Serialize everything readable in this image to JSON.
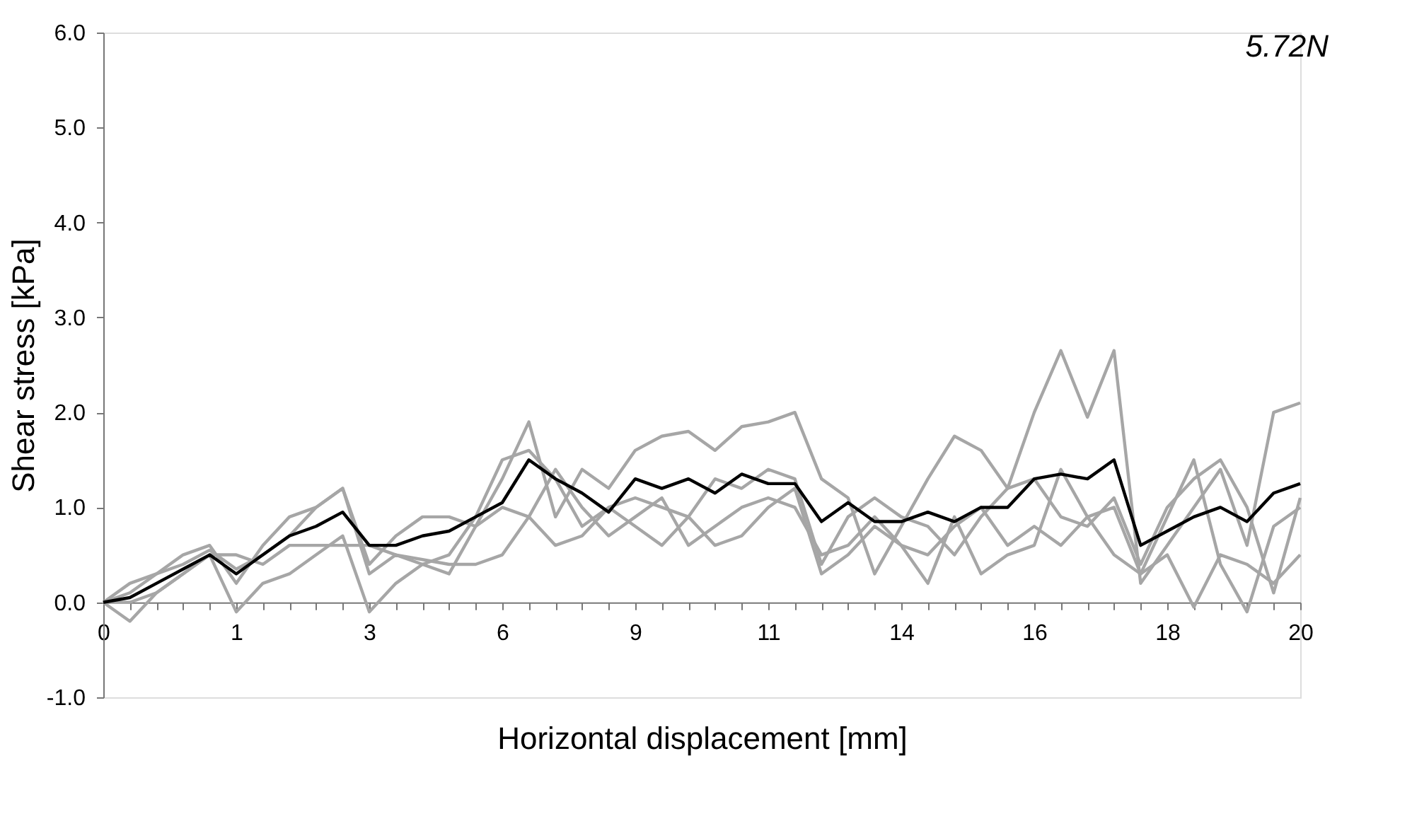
{
  "chart_data": {
    "type": "line",
    "xlabel": "Horizontal displacement [mm]",
    "ylabel": "Shear stress [kPa]",
    "annotations": [
      "5.72N"
    ],
    "categories": [
      "0",
      null,
      null,
      null,
      null,
      "1",
      null,
      null,
      null,
      null,
      "3",
      null,
      null,
      null,
      null,
      "6",
      null,
      null,
      null,
      null,
      "9",
      null,
      null,
      null,
      null,
      "11",
      null,
      null,
      null,
      null,
      "14",
      null,
      null,
      null,
      null,
      "16",
      null,
      null,
      null,
      null,
      "18",
      null,
      null,
      null,
      null,
      "20"
    ],
    "series": [
      {
        "color": "#a6a6a6",
        "values": [
          0,
          0.2,
          0.3,
          0.5,
          0.6,
          0.2,
          0.6,
          0.9,
          1.0,
          1.2,
          0.4,
          0.7,
          0.9,
          0.9,
          0.8,
          1.3,
          1.9,
          0.9,
          1.4,
          1.2,
          1.6,
          1.75,
          1.8,
          1.6,
          1.85,
          1.9,
          2.0,
          1.3,
          1.1,
          0.3,
          0.8,
          1.3,
          1.75,
          1.6,
          1.2,
          2.0,
          2.65,
          1.95,
          2.65,
          0.2,
          0.6,
          1.0,
          1.4,
          0.6,
          2.0,
          2.1
        ]
      },
      {
        "color": "#a6a6a6",
        "values": [
          0,
          0.1,
          0.3,
          0.4,
          0.55,
          0.35,
          0.5,
          0.7,
          1.0,
          1.2,
          0.3,
          0.5,
          0.4,
          0.5,
          0.9,
          1.5,
          1.6,
          1.3,
          0.8,
          1.0,
          1.1,
          1.0,
          0.9,
          1.3,
          1.2,
          1.4,
          1.3,
          0.4,
          0.9,
          1.1,
          0.9,
          0.8,
          0.5,
          0.9,
          1.2,
          1.3,
          0.9,
          0.8,
          1.1,
          0.4,
          1.0,
          1.3,
          1.5,
          1.0,
          0.1,
          1.1
        ]
      },
      {
        "color": "#a6a6a6",
        "values": [
          0,
          0.0,
          0.1,
          0.3,
          0.5,
          0.5,
          0.4,
          0.6,
          0.6,
          0.6,
          0.6,
          0.5,
          0.45,
          0.4,
          0.4,
          0.5,
          0.9,
          1.4,
          1.0,
          0.7,
          0.9,
          1.1,
          0.6,
          0.8,
          1.0,
          1.1,
          1.0,
          0.5,
          0.6,
          0.9,
          0.6,
          0.5,
          0.8,
          1.0,
          0.6,
          0.8,
          0.6,
          0.9,
          1.0,
          0.3,
          0.5,
          -0.05,
          0.5,
          0.4,
          0.2,
          0.5
        ]
      },
      {
        "color": "#a6a6a6",
        "values": [
          0,
          -0.2,
          0.1,
          0.3,
          0.5,
          -0.1,
          0.2,
          0.3,
          0.5,
          0.7,
          -0.1,
          0.2,
          0.4,
          0.3,
          0.8,
          1.0,
          0.9,
          0.6,
          0.7,
          1.0,
          0.8,
          0.6,
          0.9,
          0.6,
          0.7,
          1.0,
          1.2,
          0.3,
          0.5,
          0.8,
          0.6,
          0.2,
          0.9,
          0.3,
          0.5,
          0.6,
          1.4,
          0.9,
          0.5,
          0.3,
          0.9,
          1.5,
          0.4,
          -0.1,
          0.8,
          1.0
        ]
      },
      {
        "color": "#000000",
        "values": [
          0,
          0.05,
          0.2,
          0.35,
          0.5,
          0.3,
          0.5,
          0.7,
          0.8,
          0.95,
          0.6,
          0.6,
          0.7,
          0.75,
          0.9,
          1.05,
          1.5,
          1.3,
          1.15,
          0.95,
          1.3,
          1.2,
          1.3,
          1.15,
          1.35,
          1.25,
          1.25,
          0.85,
          1.05,
          0.85,
          0.85,
          0.95,
          0.85,
          1.0,
          1.0,
          1.3,
          1.35,
          1.3,
          1.5,
          0.6,
          0.75,
          0.9,
          1.0,
          0.85,
          1.15,
          1.25
        ]
      }
    ],
    "ylim": [
      -1,
      6
    ],
    "yticks": [
      {
        "value": -1,
        "label": "-1.0"
      },
      {
        "value": 0,
        "label": "0.0"
      },
      {
        "value": 1,
        "label": "1.0"
      },
      {
        "value": 2,
        "label": "2.0"
      },
      {
        "value": 3,
        "label": "3.0"
      },
      {
        "value": 4,
        "label": "4.0"
      },
      {
        "value": 5,
        "label": "5.0"
      },
      {
        "value": 6,
        "label": "6.0"
      }
    ],
    "grid": false,
    "legend": false,
    "marker": "none",
    "line_style": "solid"
  }
}
